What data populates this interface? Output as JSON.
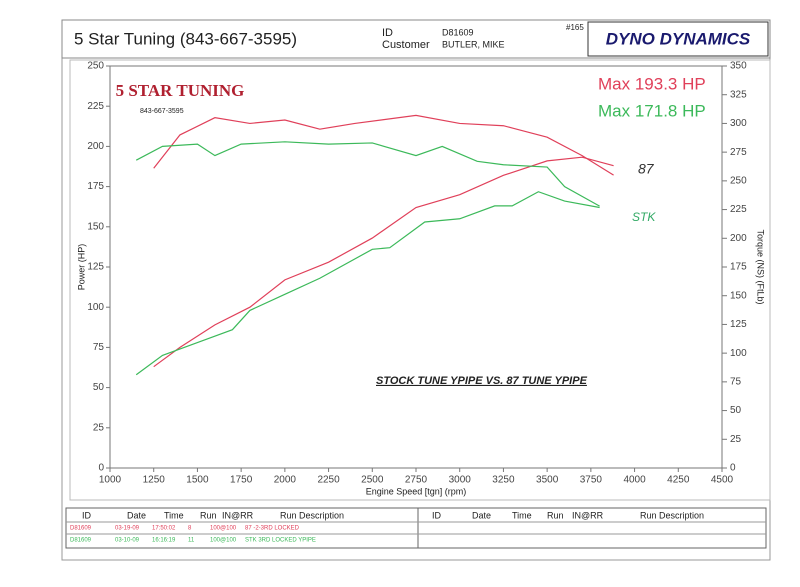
{
  "header": {
    "title": "5 Star Tuning (843-667-3595)",
    "id_label": "ID",
    "id_value": "D81609",
    "customer_label": "Customer",
    "customer_value": "BUTLER, MIKE",
    "number": "#165",
    "brand": "DYNO DYNAMICS"
  },
  "logo": {
    "name": "5 STAR TUNING",
    "phone": "843-667-3595"
  },
  "chart_data": {
    "type": "line",
    "xlabel": "Engine Speed [tgn] (rpm)",
    "ylabel": "Power (HP)",
    "y2label": "Torque (NS) (FtLb)",
    "xlim": [
      1000,
      4500
    ],
    "xticks": [
      1000,
      1250,
      1500,
      1750,
      2000,
      2250,
      2500,
      2750,
      3000,
      3250,
      3500,
      3750,
      4000,
      4250,
      4500
    ],
    "ylim": [
      0,
      250
    ],
    "yticks": [
      0,
      25,
      50,
      75,
      100,
      125,
      150,
      175,
      200,
      225,
      250
    ],
    "y2lim": [
      0,
      350
    ],
    "y2ticks": [
      0,
      25,
      50,
      75,
      100,
      125,
      150,
      175,
      200,
      225,
      250,
      275,
      300,
      325,
      350
    ],
    "series": [
      {
        "color": "#e0405a",
        "x": [
          1250,
          1400,
          1600,
          1800,
          2000,
          2250,
          2500,
          2750,
          3000,
          3250,
          3500,
          3700,
          3880
        ],
        "values": [
          63,
          75,
          89,
          100,
          117,
          128,
          143,
          162,
          170,
          182,
          191,
          193.3,
          188
        ]
      },
      {
        "color": "#3cb95a",
        "x": [
          1150,
          1300,
          1500,
          1700,
          1800,
          2000,
          2200,
          2500,
          2600,
          2800,
          3000,
          3200,
          3300,
          3450,
          3600,
          3800
        ],
        "values": [
          58,
          70,
          78,
          86,
          98,
          108,
          118,
          136,
          137,
          153,
          155,
          163,
          163,
          171.8,
          166,
          162
        ]
      },
      {
        "color": "#e0405a",
        "axis": "y2",
        "x": [
          1250,
          1400,
          1600,
          1800,
          2000,
          2200,
          2400,
          2750,
          3000,
          3250,
          3500,
          3700,
          3880
        ],
        "values": [
          261,
          290,
          305,
          300,
          303,
          295,
          300,
          307,
          300,
          298,
          288,
          272,
          255
        ]
      },
      {
        "color": "#3cb95a",
        "axis": "y2",
        "x": [
          1150,
          1300,
          1500,
          1600,
          1750,
          2000,
          2250,
          2500,
          2750,
          2900,
          3100,
          3250,
          3500,
          3600,
          3800
        ],
        "values": [
          268,
          280,
          282,
          272,
          282,
          284,
          282,
          283,
          272,
          280,
          267,
          264,
          262,
          245,
          228
        ]
      }
    ],
    "annotations": [
      "STOCK TUNE YPIPE VS. 87 TUNE YPIPE",
      "Max 193.3 HP",
      "Max 171.8 HP",
      "87",
      "STK"
    ]
  },
  "table": {
    "headers": [
      "ID",
      "Date",
      "Time",
      "Run",
      "IN@RR",
      "Run Description",
      "ID",
      "Date",
      "Time",
      "Run",
      "IN@RR",
      "Run Description"
    ],
    "rows": [
      [
        "D81609",
        "03-19-09",
        "17:50:02",
        "8",
        "100@100",
        "87 -2-3RD LOCKED"
      ],
      [
        "D81609",
        "03-10-09",
        "16:16:19",
        "11",
        "100@100",
        "STK 3RD LOCKED YPIPE"
      ]
    ]
  }
}
